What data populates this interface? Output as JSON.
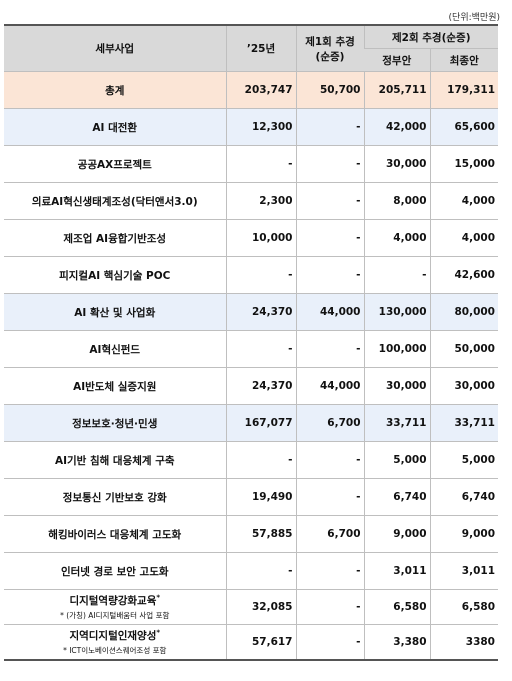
{
  "unit_label": "(단위:백만원)",
  "header": {
    "col_name": "세부사업",
    "col_2025": "’25년",
    "col_supp1": "제1회 추경\n(순증)",
    "col_supp1_line1": "제1회 추경",
    "col_supp1_line2": "(순증)",
    "col_supp2": "제2회 추경(순증)",
    "col_gov": "정부안",
    "col_final": "최종안"
  },
  "rows": [
    {
      "name": "총계",
      "y2025": "203,747",
      "supp1": "50,700",
      "gov": "205,711",
      "final": "179,311",
      "kind": "total"
    },
    {
      "name": "AI 대전환",
      "y2025": "12,300",
      "supp1": "-",
      "gov": "42,000",
      "final": "65,600",
      "kind": "section"
    },
    {
      "name": "공공AX프로젝트",
      "y2025": "-",
      "supp1": "-",
      "gov": "30,000",
      "final": "15,000",
      "kind": "item"
    },
    {
      "name": "의료AI혁신생태계조성(닥터앤서3.0)",
      "y2025": "2,300",
      "supp1": "-",
      "gov": "8,000",
      "final": "4,000",
      "kind": "item"
    },
    {
      "name": "제조업 AI융합기반조성",
      "y2025": "10,000",
      "supp1": "-",
      "gov": "4,000",
      "final": "4,000",
      "kind": "item"
    },
    {
      "name": "피지컬AI 핵심기술 POC",
      "y2025": "-",
      "supp1": "-",
      "gov": "-",
      "final": "42,600",
      "kind": "item"
    },
    {
      "name": "AI 확산 및 사업화",
      "y2025": "24,370",
      "supp1": "44,000",
      "gov": "130,000",
      "final": "80,000",
      "kind": "section"
    },
    {
      "name": "AI혁신펀드",
      "y2025": "-",
      "supp1": "-",
      "gov": "100,000",
      "final": "50,000",
      "kind": "item"
    },
    {
      "name": "AI반도체 실증지원",
      "y2025": "24,370",
      "supp1": "44,000",
      "gov": "30,000",
      "final": "30,000",
      "kind": "item"
    },
    {
      "name": "정보보호·청년·민생",
      "y2025": "167,077",
      "supp1": "6,700",
      "gov": "33,711",
      "final": "33,711",
      "kind": "section"
    },
    {
      "name": "AI기반 침해 대응체계 구축",
      "y2025": "-",
      "supp1": "-",
      "gov": "5,000",
      "final": "5,000",
      "kind": "item"
    },
    {
      "name": "정보통신 기반보호 강화",
      "y2025": "19,490",
      "supp1": "-",
      "gov": "6,740",
      "final": "6,740",
      "kind": "item"
    },
    {
      "name": "해킹바이러스 대응체계 고도화",
      "y2025": "57,885",
      "supp1": "6,700",
      "gov": "9,000",
      "final": "9,000",
      "kind": "item"
    },
    {
      "name": "인터넷 경로 보안 고도화",
      "y2025": "-",
      "supp1": "-",
      "gov": "3,011",
      "final": "3,011",
      "kind": "item"
    },
    {
      "name": "디지털역량강화교육",
      "mark": "*",
      "note": "* (가칭) AI디지털배움터 사업 포함",
      "y2025": "32,085",
      "supp1": "-",
      "gov": "6,580",
      "final": "6,580",
      "kind": "sub"
    },
    {
      "name": "지역디지털인재양성",
      "mark": "*",
      "note": "* ICT이노베이션스퀘어조성 포함",
      "y2025": "57,617",
      "supp1": "-",
      "gov": "3,380",
      "final": "3380",
      "kind": "sub"
    }
  ]
}
